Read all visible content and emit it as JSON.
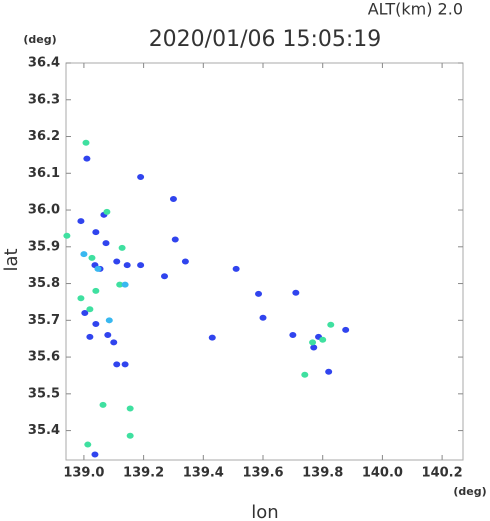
{
  "chart_data": {
    "type": "scatter",
    "title": "2020/01/06 15:05:19",
    "subtitle": "ALT(km)  2.0",
    "x_label": "lon",
    "y_label": "lat",
    "x_unit": "(deg)",
    "y_unit": "(deg)",
    "xlim": [
      138.94,
      140.27
    ],
    "ylim": [
      35.32,
      36.4
    ],
    "xticks": [
      {
        "value": 139,
        "label": "139.0"
      },
      139.2,
      139.4,
      139.6,
      139.8,
      {
        "value": 140,
        "label": "140.0"
      },
      140.2
    ],
    "yticks": [
      35.4,
      35.5,
      35.6,
      35.7,
      35.8,
      35.9,
      {
        "value": 36,
        "label": "36.0"
      },
      36.1,
      36.2,
      36.3,
      36.4
    ],
    "grid": false,
    "series": [
      {
        "color": "#3044ee",
        "x": [
          139.01,
          139.067,
          139.19,
          139.3,
          138.99,
          139.04,
          139.074,
          139.037,
          139.054,
          139.11,
          139.145,
          139.19,
          139.306,
          139.34,
          139.27,
          139.51,
          139.003,
          139.04,
          139.02,
          139.08,
          139.1,
          139.11,
          139.138,
          139.037,
          139.43,
          139.6,
          139.585,
          139.71,
          139.7,
          139.786,
          139.877,
          139.77,
          139.82
        ],
        "y": [
          36.14,
          35.987,
          36.09,
          36.03,
          35.97,
          35.94,
          35.91,
          35.85,
          35.84,
          35.86,
          35.85,
          35.85,
          35.92,
          35.86,
          35.82,
          35.84,
          35.72,
          35.69,
          35.655,
          35.66,
          35.64,
          35.58,
          35.58,
          35.335,
          35.653,
          35.707,
          35.772,
          35.775,
          35.66,
          35.655,
          35.674,
          35.626,
          35.56
        ]
      },
      {
        "color": "#3fe0a0",
        "x": [
          139.007,
          139.077,
          138.943,
          139.027,
          139.128,
          138.99,
          139.02,
          139.04,
          139.12,
          139.064,
          139.155,
          139.155,
          139.013,
          139.766,
          139.8,
          139.827,
          139.74
        ],
        "y": [
          36.183,
          35.995,
          35.93,
          35.87,
          35.897,
          35.76,
          35.73,
          35.78,
          35.797,
          35.47,
          35.46,
          35.386,
          35.362,
          35.64,
          35.647,
          35.688,
          35.552
        ]
      },
      {
        "color": "#38b8f0",
        "x": [
          139.138,
          139.0,
          139.085,
          139.047
        ],
        "y": [
          35.797,
          35.88,
          35.7,
          35.84
        ]
      }
    ]
  }
}
